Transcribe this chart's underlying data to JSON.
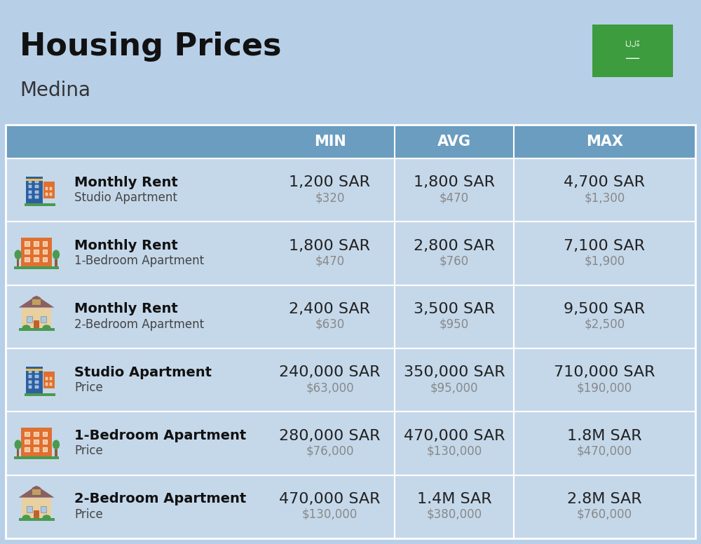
{
  "title": "Housing Prices",
  "subtitle": "Medina",
  "bg_color": "#b8cfe8",
  "header_row_color": "#6a9dbf",
  "row_light_color": "#c5d8ea",
  "row_white_color": "#ffffff",
  "divider_color": "#ffffff",
  "columns": [
    "MIN",
    "AVG",
    "MAX"
  ],
  "rows": [
    {
      "icon": "blue_tower",
      "label_bold": "Monthly Rent",
      "label_sub": "Studio Apartment",
      "min_sar": "1,200 SAR",
      "min_usd": "$320",
      "avg_sar": "1,800 SAR",
      "avg_usd": "$470",
      "max_sar": "4,700 SAR",
      "max_usd": "$1,300"
    },
    {
      "icon": "orange_building",
      "label_bold": "Monthly Rent",
      "label_sub": "1-Bedroom Apartment",
      "min_sar": "1,800 SAR",
      "min_usd": "$470",
      "avg_sar": "2,800 SAR",
      "avg_usd": "$760",
      "max_sar": "7,100 SAR",
      "max_usd": "$1,900"
    },
    {
      "icon": "beige_house",
      "label_bold": "Monthly Rent",
      "label_sub": "2-Bedroom Apartment",
      "min_sar": "2,400 SAR",
      "min_usd": "$630",
      "avg_sar": "3,500 SAR",
      "avg_usd": "$950",
      "max_sar": "9,500 SAR",
      "max_usd": "$2,500"
    },
    {
      "icon": "blue_tower",
      "label_bold": "Studio Apartment",
      "label_sub": "Price",
      "min_sar": "240,000 SAR",
      "min_usd": "$63,000",
      "avg_sar": "350,000 SAR",
      "avg_usd": "$95,000",
      "max_sar": "710,000 SAR",
      "max_usd": "$190,000"
    },
    {
      "icon": "orange_building",
      "label_bold": "1-Bedroom Apartment",
      "label_sub": "Price",
      "min_sar": "280,000 SAR",
      "min_usd": "$76,000",
      "avg_sar": "470,000 SAR",
      "avg_usd": "$130,000",
      "max_sar": "1.8M SAR",
      "max_usd": "$470,000"
    },
    {
      "icon": "beige_house",
      "label_bold": "2-Bedroom Apartment",
      "label_sub": "Price",
      "min_sar": "470,000 SAR",
      "min_usd": "$130,000",
      "avg_sar": "1.4M SAR",
      "avg_usd": "$380,000",
      "max_sar": "2.8M SAR",
      "max_usd": "$760,000"
    }
  ],
  "title_fontsize": 32,
  "subtitle_fontsize": 20,
  "header_fontsize": 15,
  "sar_fontsize": 16,
  "usd_fontsize": 12,
  "label_bold_fontsize": 14,
  "label_sub_fontsize": 12,
  "flag_green": "#3d9c3d"
}
